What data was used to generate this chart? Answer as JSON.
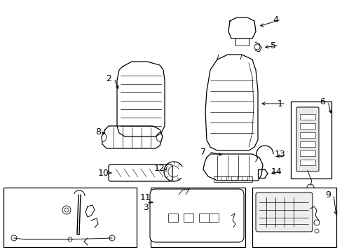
{
  "bg_color": "#ffffff",
  "line_color": "#000000",
  "fig_width": 4.89,
  "fig_height": 3.6,
  "dpi": 100,
  "label_fontsize": 9,
  "label_color": "#000000"
}
